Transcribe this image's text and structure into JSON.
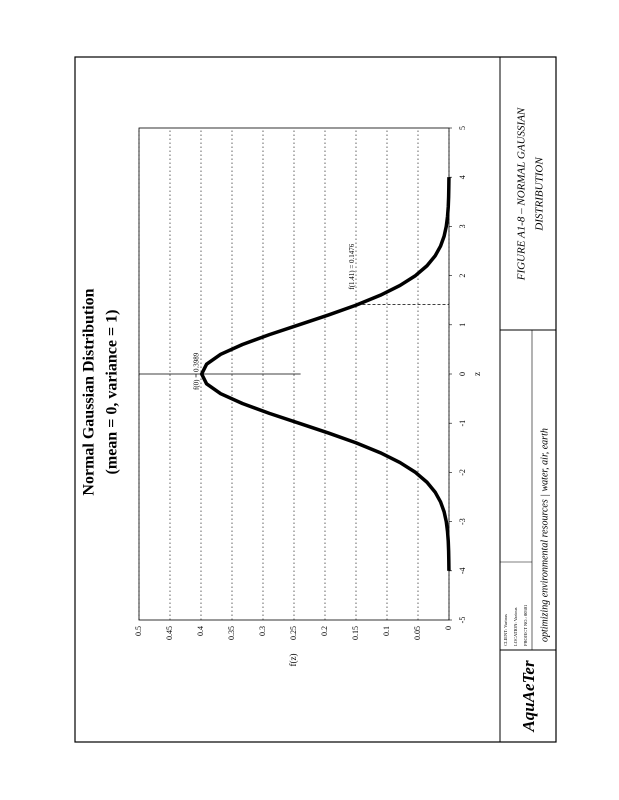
{
  "chart_data": {
    "type": "line",
    "title": "Normal Gaussian Distribution",
    "subtitle": "(mean = 0, variance = 1)",
    "x_label": "z",
    "y_label": "f(z)",
    "x": [
      -4,
      -3.8,
      -3.6,
      -3.4,
      -3.2,
      -3,
      -2.8,
      -2.6,
      -2.4,
      -2.2,
      -2,
      -1.8,
      -1.6,
      -1.4,
      -1.2,
      -1,
      -0.8,
      -0.6,
      -0.4,
      -0.2,
      0,
      0.2,
      0.4,
      0.6,
      0.8,
      1,
      1.2,
      1.4,
      1.6,
      1.8,
      2,
      2.2,
      2.4,
      2.6,
      2.8,
      3,
      3.2,
      3.4,
      3.6,
      3.8,
      4
    ],
    "series": [
      {
        "color": "#000000",
        "values": [
          0.0001,
          0.0003,
          0.0006,
          0.0012,
          0.0024,
          0.0044,
          0.0079,
          0.0136,
          0.0224,
          0.0355,
          0.054,
          0.079,
          0.1109,
          0.1497,
          0.1942,
          0.242,
          0.2897,
          0.3332,
          0.3683,
          0.391,
          0.3989,
          0.391,
          0.3683,
          0.3332,
          0.2897,
          0.242,
          0.1942,
          0.1497,
          0.1109,
          0.079,
          0.054,
          0.0355,
          0.0224,
          0.0136,
          0.0079,
          0.0044,
          0.0024,
          0.0012,
          0.0006,
          0.0003,
          0.0001
        ]
      }
    ],
    "annotations": [
      {
        "text": "f(0) = 0.3989",
        "x": 0,
        "y": 0.3989
      },
      {
        "text": "f(1.41) = 0.1476",
        "x": 1.41,
        "y": 0.1476
      }
    ],
    "xlim": [
      -5,
      5
    ],
    "xticks": [
      -5,
      -4,
      -3,
      -2,
      -1,
      0,
      1,
      2,
      3,
      4,
      5
    ],
    "ylim": [
      0,
      0.5
    ],
    "yticks": [
      0,
      0.05,
      0.1,
      0.15,
      0.2,
      0.25,
      0.3,
      0.35,
      0.4,
      0.45,
      0.5
    ],
    "grid": "y"
  },
  "title_block": {
    "logo": "AquAeTer",
    "tagline": "optimizing environmental resources | water, air, earth",
    "figure_title": [
      "FIGURE A1-8 – NORMAL GAUSSIAN",
      "DISTRIBUTION"
    ],
    "fields": [
      "CLIENT: Various",
      "LOCATION: Various",
      "PROJECT NO.: 00301"
    ]
  }
}
